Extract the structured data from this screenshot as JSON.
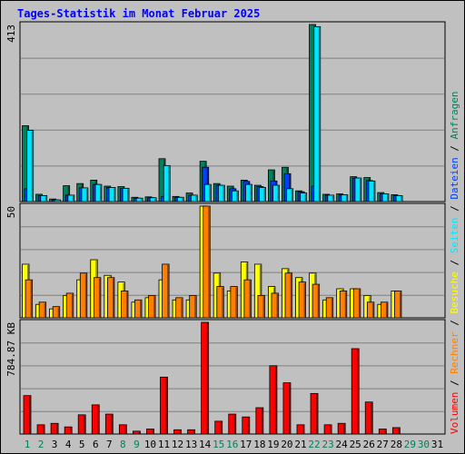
{
  "title": "Tages-Statistik im Monat Februar 2025",
  "colors": {
    "background": "#c0c0c0",
    "grid": "#808080",
    "title": "#0000ff",
    "weekday": "#000000",
    "weekend": "#00805c",
    "anfragen": "#00805c",
    "dateien": "#0040ff",
    "seiten": "#00e6ff",
    "besuche": "#ffff00",
    "rechner": "#ff8000",
    "volumen": "#ff0000"
  },
  "days": [
    "1",
    "2",
    "3",
    "4",
    "5",
    "6",
    "7",
    "8",
    "9",
    "10",
    "11",
    "12",
    "13",
    "14",
    "15",
    "16",
    "17",
    "18",
    "19",
    "20",
    "21",
    "22",
    "23",
    "24",
    "25",
    "26",
    "27",
    "28",
    "29",
    "30",
    "31"
  ],
  "weekend_days": [
    1,
    2,
    8,
    9,
    15,
    16,
    22,
    23,
    29,
    30
  ],
  "legend": {
    "anfragen": "Anfragen",
    "dateien": "Dateien",
    "seiten": "Seiten",
    "besuche": "Besuche",
    "rechner": "Rechner",
    "volumen": "Volumen",
    "sep": "/"
  },
  "chart_data": [
    {
      "type": "bar",
      "name": "Anfragen / Dateien / Seiten",
      "axis_max_label": "413",
      "ylim": [
        0,
        413
      ],
      "x": [
        1,
        2,
        3,
        4,
        5,
        6,
        7,
        8,
        9,
        10,
        11,
        12,
        13,
        14,
        15,
        16,
        17,
        18,
        19,
        20,
        21,
        22,
        23,
        24,
        25,
        26,
        27,
        28,
        29,
        30,
        31
      ],
      "series": [
        {
          "name": "Anfragen",
          "values": [
            177,
            17,
            6,
            37,
            42,
            50,
            36,
            35,
            10,
            11,
            100,
            12,
            20,
            94,
            42,
            36,
            50,
            38,
            74,
            80,
            25,
            413,
            17,
            18,
            58,
            56,
            21,
            16,
            0,
            0,
            0
          ]
        },
        {
          "name": "Dateien",
          "values": [
            30,
            14,
            4,
            15,
            32,
            40,
            33,
            31,
            8,
            9,
            12,
            10,
            15,
            80,
            38,
            30,
            47,
            35,
            48,
            65,
            23,
            36,
            15,
            16,
            55,
            49,
            18,
            14,
            0,
            0,
            0
          ]
        },
        {
          "name": "Seiten",
          "values": [
            166,
            14,
            4,
            15,
            32,
            40,
            33,
            31,
            8,
            9,
            84,
            10,
            15,
            40,
            38,
            25,
            40,
            33,
            38,
            30,
            20,
            408,
            15,
            16,
            55,
            48,
            18,
            14,
            0,
            0,
            0
          ]
        }
      ]
    },
    {
      "type": "bar",
      "name": "Besuche / Rechner",
      "axis_max_label": "50",
      "ylim": [
        0,
        50
      ],
      "x": [
        1,
        2,
        3,
        4,
        5,
        6,
        7,
        8,
        9,
        10,
        11,
        12,
        13,
        14,
        15,
        16,
        17,
        18,
        19,
        20,
        21,
        22,
        23,
        24,
        25,
        26,
        27,
        28,
        29,
        30,
        31
      ],
      "series": [
        {
          "name": "Besuche",
          "values": [
            24,
            6,
            4,
            10,
            17,
            26,
            19,
            16,
            7,
            9,
            17,
            8,
            8,
            50,
            20,
            12,
            25,
            24,
            14,
            22,
            18,
            20,
            8,
            13,
            13,
            10,
            6,
            12,
            0,
            0,
            0
          ]
        },
        {
          "name": "Rechner",
          "values": [
            17,
            7,
            5,
            11,
            20,
            18,
            18,
            12,
            8,
            10,
            24,
            9,
            10,
            50,
            14,
            14,
            17,
            10,
            11,
            20,
            16,
            15,
            9,
            12,
            13,
            7,
            7,
            12,
            0,
            0,
            0
          ]
        }
      ]
    },
    {
      "type": "bar",
      "name": "Volumen",
      "axis_max_label": "784.87 KB",
      "ylim": [
        0,
        784.87
      ],
      "x": [
        1,
        2,
        3,
        4,
        5,
        6,
        7,
        8,
        9,
        10,
        11,
        12,
        13,
        14,
        15,
        16,
        17,
        18,
        19,
        20,
        21,
        22,
        23,
        24,
        25,
        26,
        27,
        28,
        29,
        30,
        31
      ],
      "series": [
        {
          "name": "Volumen",
          "values": [
            270,
            65,
            75,
            50,
            135,
            205,
            140,
            65,
            20,
            35,
            400,
            30,
            30,
            785,
            90,
            140,
            120,
            185,
            480,
            360,
            65,
            285,
            65,
            75,
            600,
            225,
            35,
            45,
            0,
            0,
            0
          ]
        }
      ]
    }
  ]
}
